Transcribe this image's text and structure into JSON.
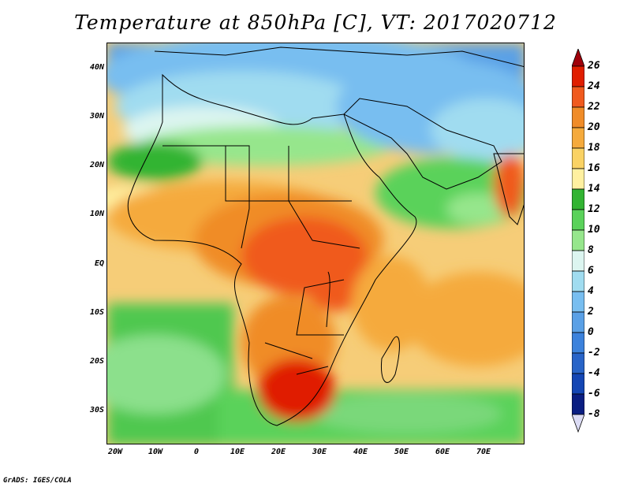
{
  "title": "Temperature at 850hPa [C], VT: 2017020712",
  "map": {
    "latitude_labels": [
      "40N",
      "30N",
      "20N",
      "10N",
      "EQ",
      "10S",
      "20S",
      "30S"
    ],
    "longitude_labels": [
      "20W",
      "10W",
      "0",
      "10E",
      "20E",
      "30E",
      "40E",
      "50E",
      "60E",
      "70E"
    ],
    "ocean_color": "#f8d27c",
    "land_color_hot": "#e8501e",
    "cold_color": "#3c8ce0"
  },
  "colorbar": {
    "labels": [
      "26",
      "24",
      "22",
      "20",
      "18",
      "16",
      "14",
      "12",
      "10",
      "8",
      "6",
      "4",
      "2",
      "0",
      "-2",
      "-4",
      "-6",
      "-8"
    ],
    "colors": [
      "#a0000a",
      "#e01e00",
      "#f05a1e",
      "#f08c28",
      "#f5aa3c",
      "#fad264",
      "#fff0a0",
      "#32b432",
      "#5ad25a",
      "#96e68c",
      "#dcf5f0",
      "#a0dcf0",
      "#78bef0",
      "#5aa0e6",
      "#3c82dc",
      "#2864c8",
      "#1446b4",
      "#0a1e82",
      "#dcdcf5"
    ]
  },
  "footer": "GrADS: IGES/COLA"
}
